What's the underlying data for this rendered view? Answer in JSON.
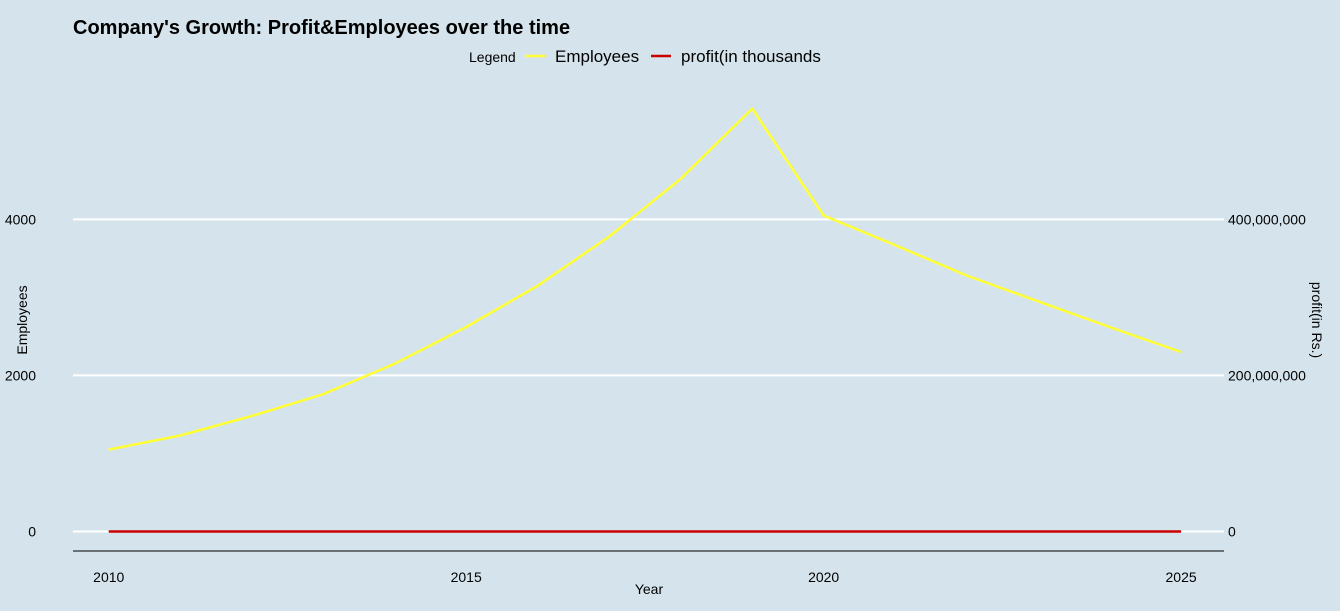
{
  "chart_data": {
    "type": "line",
    "title": "Company's Growth: Profit&Employees over the time",
    "xlabel": "Year",
    "ylabel_left": "Employees",
    "ylabel_right": "profit(in Rs.)",
    "legend": {
      "title": "Legend",
      "placement": "top",
      "entries": [
        {
          "label": "Employees",
          "color": "#ffff33"
        },
        {
          "label": "profit(in thousands",
          "color": "#cc0000"
        }
      ]
    },
    "x": [
      2010,
      2011,
      2012,
      2013,
      2014,
      2015,
      2016,
      2017,
      2018,
      2019,
      2020,
      2021,
      2022,
      2023,
      2024,
      2025
    ],
    "xlim": [
      2009.5,
      2025.6
    ],
    "x_ticks": [
      "2010",
      "2015",
      "2020",
      "2025"
    ],
    "ylim_left": [
      -250,
      5850
    ],
    "y_ticks_left": [
      0,
      2000,
      4000
    ],
    "y_tick_labels_left": [
      "0",
      "2000",
      "4000"
    ],
    "y_ticks_right": [
      0,
      200000000,
      400000000
    ],
    "y_tick_labels_right": [
      "0",
      "200,000,000",
      "400,000,000"
    ],
    "grid": true,
    "series": [
      {
        "name": "Employees",
        "axis": "left",
        "color": "#ffff33",
        "values": [
          1050,
          1230,
          1480,
          1760,
          2150,
          2620,
          3150,
          3780,
          4520,
          5420,
          4050,
          3670,
          3280,
          2950,
          2620,
          2300
        ]
      },
      {
        "name": "profit(in thousands",
        "axis": "left",
        "color": "#cc0000",
        "values": [
          0,
          0,
          0,
          0,
          0,
          0,
          0,
          0,
          0,
          0,
          0,
          0,
          0,
          0,
          0,
          0
        ]
      }
    ]
  }
}
